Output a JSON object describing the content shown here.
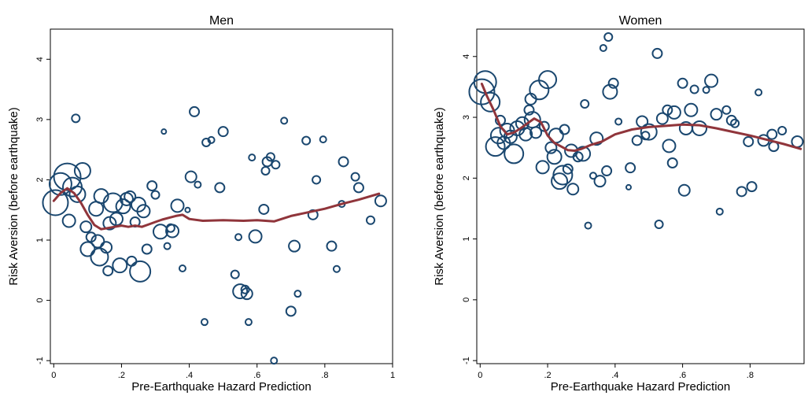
{
  "chart_data": [
    {
      "type": "scatter",
      "title": "Men",
      "xlabel": "Pre-Earthquake Hazard Prediction",
      "ylabel": "Risk Aversion (before earthquake)",
      "xlim": [
        -0.01,
        1.0
      ],
      "ylim": [
        -1.05,
        4.5
      ],
      "xticks": [
        0,
        0.2,
        0.4,
        0.6,
        0.8,
        1
      ],
      "xtick_labels": [
        "0",
        ".2",
        ".4",
        ".6",
        ".8",
        "1"
      ],
      "yticks": [
        -1,
        0,
        1,
        2,
        3,
        4
      ],
      "ytick_labels": [
        "-1",
        "0",
        "1",
        "2",
        "3",
        "4"
      ],
      "grid": false,
      "marker_color": "#1a476f",
      "fit_color": "#90353b",
      "points": [
        {
          "x": 0.005,
          "y": 1.62,
          "r": 16
        },
        {
          "x": 0.02,
          "y": 1.93,
          "r": 14
        },
        {
          "x": 0.04,
          "y": 2.05,
          "r": 17
        },
        {
          "x": 0.055,
          "y": 1.88,
          "r": 12
        },
        {
          "x": 0.065,
          "y": 3.02,
          "r": 5
        },
        {
          "x": 0.07,
          "y": 1.76,
          "r": 10
        },
        {
          "x": 0.085,
          "y": 2.15,
          "r": 10
        },
        {
          "x": 0.045,
          "y": 1.32,
          "r": 8
        },
        {
          "x": 0.095,
          "y": 1.22,
          "r": 7
        },
        {
          "x": 0.1,
          "y": 0.85,
          "r": 9
        },
        {
          "x": 0.11,
          "y": 1.05,
          "r": 6
        },
        {
          "x": 0.125,
          "y": 1.52,
          "r": 9
        },
        {
          "x": 0.13,
          "y": 0.98,
          "r": 8
        },
        {
          "x": 0.135,
          "y": 0.72,
          "r": 11
        },
        {
          "x": 0.14,
          "y": 1.73,
          "r": 9
        },
        {
          "x": 0.155,
          "y": 0.88,
          "r": 7
        },
        {
          "x": 0.16,
          "y": 0.49,
          "r": 6
        },
        {
          "x": 0.165,
          "y": 1.28,
          "r": 8
        },
        {
          "x": 0.175,
          "y": 1.62,
          "r": 12
        },
        {
          "x": 0.185,
          "y": 1.35,
          "r": 8
        },
        {
          "x": 0.195,
          "y": 0.58,
          "r": 9
        },
        {
          "x": 0.205,
          "y": 1.56,
          "r": 9
        },
        {
          "x": 0.215,
          "y": 1.68,
          "r": 8
        },
        {
          "x": 0.225,
          "y": 1.72,
          "r": 7
        },
        {
          "x": 0.23,
          "y": 0.65,
          "r": 6
        },
        {
          "x": 0.24,
          "y": 1.3,
          "r": 6
        },
        {
          "x": 0.25,
          "y": 1.59,
          "r": 9
        },
        {
          "x": 0.255,
          "y": 0.48,
          "r": 13
        },
        {
          "x": 0.265,
          "y": 1.48,
          "r": 8
        },
        {
          "x": 0.275,
          "y": 0.85,
          "r": 6
        },
        {
          "x": 0.29,
          "y": 1.9,
          "r": 6
        },
        {
          "x": 0.3,
          "y": 1.75,
          "r": 5
        },
        {
          "x": 0.315,
          "y": 1.14,
          "r": 9
        },
        {
          "x": 0.325,
          "y": 2.8,
          "r": 3
        },
        {
          "x": 0.335,
          "y": 0.9,
          "r": 4
        },
        {
          "x": 0.345,
          "y": 1.2,
          "r": 5
        },
        {
          "x": 0.35,
          "y": 1.15,
          "r": 8
        },
        {
          "x": 0.365,
          "y": 1.57,
          "r": 8
        },
        {
          "x": 0.38,
          "y": 0.53,
          "r": 4
        },
        {
          "x": 0.395,
          "y": 1.5,
          "r": 3
        },
        {
          "x": 0.405,
          "y": 2.05,
          "r": 7
        },
        {
          "x": 0.415,
          "y": 3.13,
          "r": 6
        },
        {
          "x": 0.425,
          "y": 1.92,
          "r": 4
        },
        {
          "x": 0.445,
          "y": -0.36,
          "r": 4
        },
        {
          "x": 0.45,
          "y": 2.62,
          "r": 5
        },
        {
          "x": 0.465,
          "y": 2.66,
          "r": 4
        },
        {
          "x": 0.49,
          "y": 1.87,
          "r": 6
        },
        {
          "x": 0.5,
          "y": 2.8,
          "r": 6
        },
        {
          "x": 0.535,
          "y": 0.43,
          "r": 5
        },
        {
          "x": 0.545,
          "y": 1.05,
          "r": 4
        },
        {
          "x": 0.55,
          "y": 0.15,
          "r": 9
        },
        {
          "x": 0.565,
          "y": 0.18,
          "r": 5
        },
        {
          "x": 0.57,
          "y": 0.11,
          "r": 7
        },
        {
          "x": 0.575,
          "y": -0.36,
          "r": 4
        },
        {
          "x": 0.585,
          "y": 2.37,
          "r": 4
        },
        {
          "x": 0.595,
          "y": 1.06,
          "r": 8
        },
        {
          "x": 0.62,
          "y": 1.51,
          "r": 6
        },
        {
          "x": 0.625,
          "y": 2.15,
          "r": 5
        },
        {
          "x": 0.63,
          "y": 2.3,
          "r": 6
        },
        {
          "x": 0.64,
          "y": 2.38,
          "r": 5
        },
        {
          "x": 0.65,
          "y": -1.0,
          "r": 4
        },
        {
          "x": 0.655,
          "y": 2.25,
          "r": 5
        },
        {
          "x": 0.68,
          "y": 2.98,
          "r": 4
        },
        {
          "x": 0.7,
          "y": -0.18,
          "r": 6
        },
        {
          "x": 0.71,
          "y": 0.9,
          "r": 7
        },
        {
          "x": 0.72,
          "y": 0.11,
          "r": 4
        },
        {
          "x": 0.745,
          "y": 2.65,
          "r": 5
        },
        {
          "x": 0.765,
          "y": 1.42,
          "r": 6
        },
        {
          "x": 0.775,
          "y": 2.0,
          "r": 5
        },
        {
          "x": 0.795,
          "y": 2.67,
          "r": 4
        },
        {
          "x": 0.82,
          "y": 0.9,
          "r": 6
        },
        {
          "x": 0.835,
          "y": 0.52,
          "r": 4
        },
        {
          "x": 0.85,
          "y": 1.6,
          "r": 4
        },
        {
          "x": 0.855,
          "y": 2.3,
          "r": 6
        },
        {
          "x": 0.89,
          "y": 2.05,
          "r": 5
        },
        {
          "x": 0.9,
          "y": 1.87,
          "r": 6
        },
        {
          "x": 0.935,
          "y": 1.33,
          "r": 5
        },
        {
          "x": 0.965,
          "y": 1.65,
          "r": 7
        }
      ],
      "fit": [
        [
          0.0,
          1.65
        ],
        [
          0.02,
          1.78
        ],
        [
          0.04,
          1.86
        ],
        [
          0.06,
          1.78
        ],
        [
          0.08,
          1.62
        ],
        [
          0.1,
          1.42
        ],
        [
          0.12,
          1.25
        ],
        [
          0.14,
          1.18
        ],
        [
          0.16,
          1.2
        ],
        [
          0.18,
          1.22
        ],
        [
          0.2,
          1.24
        ],
        [
          0.22,
          1.22
        ],
        [
          0.24,
          1.24
        ],
        [
          0.26,
          1.22
        ],
        [
          0.28,
          1.26
        ],
        [
          0.3,
          1.3
        ],
        [
          0.32,
          1.34
        ],
        [
          0.34,
          1.37
        ],
        [
          0.36,
          1.4
        ],
        [
          0.38,
          1.42
        ],
        [
          0.4,
          1.35
        ],
        [
          0.44,
          1.32
        ],
        [
          0.5,
          1.33
        ],
        [
          0.56,
          1.32
        ],
        [
          0.6,
          1.33
        ],
        [
          0.65,
          1.31
        ],
        [
          0.7,
          1.4
        ],
        [
          0.75,
          1.46
        ],
        [
          0.8,
          1.52
        ],
        [
          0.85,
          1.6
        ],
        [
          0.9,
          1.67
        ],
        [
          0.96,
          1.77
        ]
      ]
    },
    {
      "type": "scatter",
      "title": "Women",
      "xlabel": "Pre-Earthquake Hazard Prediction",
      "ylabel": "Risk Aversion (before earthquake)",
      "xlim": [
        -0.01,
        0.96
      ],
      "ylim": [
        -1.05,
        4.45
      ],
      "xticks": [
        0,
        0.2,
        0.4,
        0.6,
        0.8
      ],
      "xtick_labels": [
        "0",
        ".2",
        ".4",
        ".6",
        ".8"
      ],
      "yticks": [
        -1,
        0,
        1,
        2,
        3,
        4
      ],
      "ytick_labels": [
        "-1",
        "0",
        "1",
        "2",
        "3",
        "4"
      ],
      "grid": false,
      "marker_color": "#1a476f",
      "fit_color": "#90353b",
      "points": [
        {
          "x": 0.005,
          "y": 3.42,
          "r": 16
        },
        {
          "x": 0.015,
          "y": 3.58,
          "r": 14
        },
        {
          "x": 0.03,
          "y": 3.25,
          "r": 12
        },
        {
          "x": 0.045,
          "y": 2.52,
          "r": 12
        },
        {
          "x": 0.055,
          "y": 2.7,
          "r": 10
        },
        {
          "x": 0.06,
          "y": 2.95,
          "r": 6
        },
        {
          "x": 0.07,
          "y": 2.58,
          "r": 8
        },
        {
          "x": 0.08,
          "y": 2.78,
          "r": 9
        },
        {
          "x": 0.09,
          "y": 2.68,
          "r": 8
        },
        {
          "x": 0.1,
          "y": 2.4,
          "r": 12
        },
        {
          "x": 0.11,
          "y": 2.82,
          "r": 9
        },
        {
          "x": 0.125,
          "y": 2.9,
          "r": 8
        },
        {
          "x": 0.135,
          "y": 2.72,
          "r": 8
        },
        {
          "x": 0.145,
          "y": 3.12,
          "r": 6
        },
        {
          "x": 0.15,
          "y": 3.3,
          "r": 7
        },
        {
          "x": 0.155,
          "y": 2.96,
          "r": 10
        },
        {
          "x": 0.165,
          "y": 2.75,
          "r": 7
        },
        {
          "x": 0.175,
          "y": 3.45,
          "r": 12
        },
        {
          "x": 0.185,
          "y": 2.18,
          "r": 8
        },
        {
          "x": 0.19,
          "y": 2.85,
          "r": 6
        },
        {
          "x": 0.2,
          "y": 3.62,
          "r": 11
        },
        {
          "x": 0.21,
          "y": 2.5,
          "r": 7
        },
        {
          "x": 0.22,
          "y": 2.35,
          "r": 9
        },
        {
          "x": 0.225,
          "y": 2.7,
          "r": 9
        },
        {
          "x": 0.235,
          "y": 1.95,
          "r": 10
        },
        {
          "x": 0.245,
          "y": 2.05,
          "r": 12
        },
        {
          "x": 0.25,
          "y": 2.8,
          "r": 6
        },
        {
          "x": 0.26,
          "y": 2.15,
          "r": 6
        },
        {
          "x": 0.27,
          "y": 2.45,
          "r": 8
        },
        {
          "x": 0.275,
          "y": 1.82,
          "r": 7
        },
        {
          "x": 0.29,
          "y": 2.35,
          "r": 6
        },
        {
          "x": 0.305,
          "y": 2.4,
          "r": 9
        },
        {
          "x": 0.31,
          "y": 3.22,
          "r": 5
        },
        {
          "x": 0.32,
          "y": 1.22,
          "r": 4
        },
        {
          "x": 0.335,
          "y": 2.04,
          "r": 4
        },
        {
          "x": 0.345,
          "y": 2.65,
          "r": 8
        },
        {
          "x": 0.355,
          "y": 1.95,
          "r": 7
        },
        {
          "x": 0.365,
          "y": 4.14,
          "r": 4
        },
        {
          "x": 0.375,
          "y": 2.12,
          "r": 6
        },
        {
          "x": 0.38,
          "y": 4.32,
          "r": 5
        },
        {
          "x": 0.385,
          "y": 3.42,
          "r": 9
        },
        {
          "x": 0.395,
          "y": 3.56,
          "r": 6
        },
        {
          "x": 0.41,
          "y": 2.93,
          "r": 4
        },
        {
          "x": 0.44,
          "y": 1.85,
          "r": 3
        },
        {
          "x": 0.445,
          "y": 2.17,
          "r": 6
        },
        {
          "x": 0.465,
          "y": 2.62,
          "r": 6
        },
        {
          "x": 0.48,
          "y": 2.93,
          "r": 7
        },
        {
          "x": 0.49,
          "y": 2.7,
          "r": 5
        },
        {
          "x": 0.5,
          "y": 2.76,
          "r": 10
        },
        {
          "x": 0.525,
          "y": 4.05,
          "r": 6
        },
        {
          "x": 0.53,
          "y": 1.24,
          "r": 5
        },
        {
          "x": 0.54,
          "y": 2.98,
          "r": 7
        },
        {
          "x": 0.555,
          "y": 3.12,
          "r": 6
        },
        {
          "x": 0.56,
          "y": 2.53,
          "r": 8
        },
        {
          "x": 0.57,
          "y": 2.25,
          "r": 6
        },
        {
          "x": 0.575,
          "y": 3.08,
          "r": 8
        },
        {
          "x": 0.6,
          "y": 3.56,
          "r": 6
        },
        {
          "x": 0.605,
          "y": 1.8,
          "r": 7
        },
        {
          "x": 0.61,
          "y": 2.82,
          "r": 8
        },
        {
          "x": 0.625,
          "y": 3.12,
          "r": 8
        },
        {
          "x": 0.635,
          "y": 3.46,
          "r": 5
        },
        {
          "x": 0.65,
          "y": 2.82,
          "r": 9
        },
        {
          "x": 0.67,
          "y": 3.45,
          "r": 4
        },
        {
          "x": 0.685,
          "y": 3.6,
          "r": 8
        },
        {
          "x": 0.7,
          "y": 3.05,
          "r": 7
        },
        {
          "x": 0.71,
          "y": 1.45,
          "r": 4
        },
        {
          "x": 0.73,
          "y": 3.12,
          "r": 5
        },
        {
          "x": 0.745,
          "y": 2.95,
          "r": 6
        },
        {
          "x": 0.755,
          "y": 2.9,
          "r": 5
        },
        {
          "x": 0.775,
          "y": 1.78,
          "r": 6
        },
        {
          "x": 0.795,
          "y": 2.6,
          "r": 6
        },
        {
          "x": 0.805,
          "y": 1.86,
          "r": 6
        },
        {
          "x": 0.825,
          "y": 3.41,
          "r": 4
        },
        {
          "x": 0.84,
          "y": 2.62,
          "r": 7
        },
        {
          "x": 0.865,
          "y": 2.72,
          "r": 6
        },
        {
          "x": 0.87,
          "y": 2.52,
          "r": 6
        },
        {
          "x": 0.895,
          "y": 2.78,
          "r": 5
        },
        {
          "x": 0.94,
          "y": 2.6,
          "r": 7
        }
      ],
      "fit": [
        [
          0.005,
          3.55
        ],
        [
          0.02,
          3.35
        ],
        [
          0.04,
          3.12
        ],
        [
          0.06,
          2.85
        ],
        [
          0.08,
          2.72
        ],
        [
          0.1,
          2.75
        ],
        [
          0.12,
          2.82
        ],
        [
          0.14,
          2.9
        ],
        [
          0.16,
          2.98
        ],
        [
          0.18,
          2.92
        ],
        [
          0.2,
          2.7
        ],
        [
          0.22,
          2.58
        ],
        [
          0.24,
          2.52
        ],
        [
          0.26,
          2.46
        ],
        [
          0.28,
          2.45
        ],
        [
          0.3,
          2.48
        ],
        [
          0.33,
          2.55
        ],
        [
          0.36,
          2.6
        ],
        [
          0.4,
          2.72
        ],
        [
          0.45,
          2.8
        ],
        [
          0.5,
          2.84
        ],
        [
          0.55,
          2.86
        ],
        [
          0.6,
          2.88
        ],
        [
          0.65,
          2.87
        ],
        [
          0.7,
          2.82
        ],
        [
          0.75,
          2.76
        ],
        [
          0.8,
          2.7
        ],
        [
          0.85,
          2.63
        ],
        [
          0.9,
          2.56
        ],
        [
          0.95,
          2.48
        ]
      ]
    }
  ]
}
